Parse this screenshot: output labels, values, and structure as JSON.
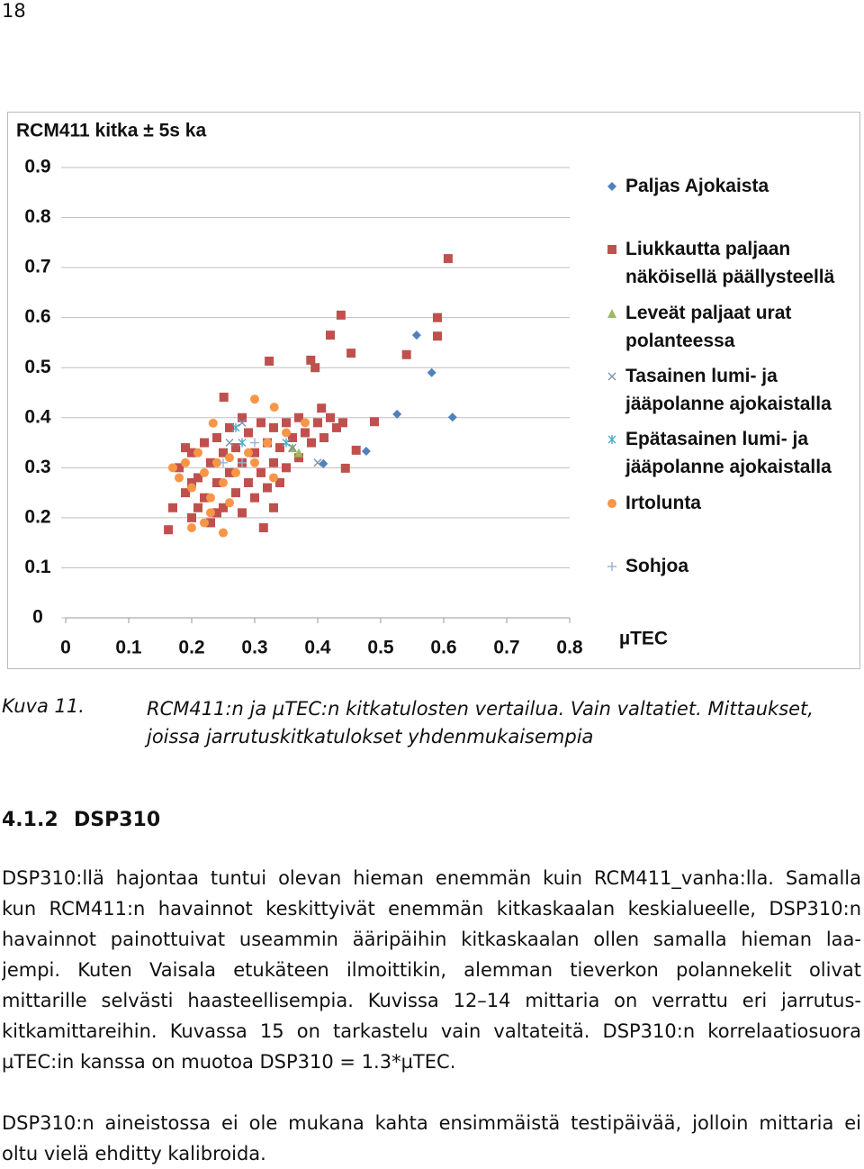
{
  "page_number": "18",
  "chart_data": {
    "type": "scatter",
    "title": "RCM411 kitka ± 5s ka",
    "x_label": "µTEC",
    "xlim": [
      0,
      0.8
    ],
    "xticks": [
      0,
      0.1,
      0.2,
      0.3,
      0.4,
      0.5,
      0.6,
      0.7,
      0.8
    ],
    "ylim": [
      0,
      0.9
    ],
    "yticks": [
      0,
      0.1,
      0.2,
      0.3,
      0.4,
      0.5,
      0.6,
      0.7,
      0.8,
      0.9
    ],
    "grid": true,
    "legend": "right",
    "series": [
      {
        "name": "Paljas Ajokaista",
        "color": "#4f81bd",
        "marker": "diamond",
        "x": [
          0.557,
          0.581,
          0.614,
          0.526,
          0.477,
          0.409
        ],
        "values": [
          0.565,
          0.49,
          0.401,
          0.407,
          0.333,
          0.308
        ]
      },
      {
        "name": "Liukkautta paljaan näköisellä päällysteellä",
        "color": "#c0504d",
        "marker": "square",
        "x": [
          0.607,
          0.59,
          0.59,
          0.437,
          0.42,
          0.323,
          0.251,
          0.541,
          0.453,
          0.389,
          0.396,
          0.406,
          0.314,
          0.163,
          0.444,
          0.49,
          0.461,
          0.17,
          0.18,
          0.19,
          0.2,
          0.2,
          0.21,
          0.22,
          0.22,
          0.23,
          0.23,
          0.24,
          0.24,
          0.25,
          0.25,
          0.26,
          0.26,
          0.27,
          0.27,
          0.28,
          0.28,
          0.29,
          0.29,
          0.3,
          0.3,
          0.31,
          0.31,
          0.32,
          0.32,
          0.33,
          0.33,
          0.34,
          0.34,
          0.35,
          0.35,
          0.36,
          0.37,
          0.37,
          0.38,
          0.39,
          0.4,
          0.41,
          0.42,
          0.43,
          0.44,
          0.19,
          0.21,
          0.24,
          0.28,
          0.33,
          0.2
        ],
        "values": [
          0.718,
          0.6,
          0.563,
          0.605,
          0.565,
          0.513,
          0.441,
          0.526,
          0.529,
          0.515,
          0.5,
          0.419,
          0.18,
          0.176,
          0.299,
          0.392,
          0.335,
          0.22,
          0.3,
          0.25,
          0.33,
          0.2,
          0.28,
          0.35,
          0.24,
          0.31,
          0.19,
          0.36,
          0.27,
          0.22,
          0.33,
          0.38,
          0.29,
          0.25,
          0.34,
          0.31,
          0.21,
          0.37,
          0.27,
          0.33,
          0.24,
          0.39,
          0.29,
          0.35,
          0.26,
          0.31,
          0.38,
          0.34,
          0.27,
          0.39,
          0.3,
          0.36,
          0.4,
          0.32,
          0.37,
          0.35,
          0.39,
          0.36,
          0.4,
          0.38,
          0.39,
          0.34,
          0.22,
          0.21,
          0.4,
          0.22,
          0.27
        ]
      },
      {
        "name": "Leveät paljaat urat polanteessa",
        "color": "#9bbb59",
        "marker": "triangle",
        "x": [
          0.37,
          0.36
        ],
        "values": [
          0.33,
          0.34
        ]
      },
      {
        "name": "Tasainen lumi- ja jääpolanne ajokaistalla",
        "color": "#7f8fa9",
        "marker": "x",
        "x": [
          0.28,
          0.36,
          0.26,
          0.4
        ],
        "values": [
          0.39,
          0.34,
          0.35,
          0.31
        ]
      },
      {
        "name": "Epätasainen lumi- ja jääpolanne ajokaistalla",
        "color": "#4bacc6",
        "marker": "star",
        "x": [
          0.28,
          0.35,
          0.27
        ],
        "values": [
          0.35,
          0.35,
          0.38
        ]
      },
      {
        "name": "Irtolunta",
        "color": "#f79646",
        "marker": "circle",
        "x": [
          0.3,
          0.331,
          0.234,
          0.25,
          0.2,
          0.17,
          0.18,
          0.19,
          0.2,
          0.21,
          0.22,
          0.23,
          0.24,
          0.25,
          0.26,
          0.27,
          0.29,
          0.3,
          0.32,
          0.33,
          0.35,
          0.38,
          0.23,
          0.26,
          0.22
        ],
        "values": [
          0.437,
          0.421,
          0.389,
          0.17,
          0.18,
          0.3,
          0.28,
          0.31,
          0.26,
          0.33,
          0.29,
          0.24,
          0.31,
          0.27,
          0.32,
          0.29,
          0.33,
          0.31,
          0.35,
          0.28,
          0.37,
          0.39,
          0.21,
          0.23,
          0.19
        ]
      },
      {
        "name": "Sohjoa",
        "color": "#95b3d7",
        "marker": "plus",
        "x": [
          0.25,
          0.28,
          0.3
        ],
        "values": [
          0.31,
          0.31,
          0.35
        ]
      }
    ]
  },
  "caption": {
    "label": "Kuva 11.",
    "lines": [
      "RCM411:n  ja µTEC:n kitkatulosten vertailua. Vain valtatiet. Mittaukset,",
      "joissa jarrutuskitkatulokset yhdenmukaisempia"
    ]
  },
  "heading": {
    "number": "4.1.2",
    "title": "DSP310"
  },
  "paragraphs": [
    [
      "DSP310:llä hajontaa tuntui olevan hieman enemmän kuin RCM411_vanha:lla. Samalla",
      "kun RCM411:n havainnot keskittyivät enemmän kitkaskaalan keskialueelle, DSP310:n",
      "havainnot painottuivat useammin ääripäihin kitkaskaalan ollen samalla hieman laa-",
      "jempi. Kuten Vaisala etukäteen ilmoittikin, alemman tieverkon polannekelit olivat",
      "mittarille selvästi haasteellisempia. Kuvissa 12–14 mittaria on verrattu eri jarrutus-",
      "kitkamittareihin. Kuvassa 15 on tarkastelu vain valtateitä. DSP310:n korrelaatiosuora",
      "µTEC:in kanssa on muotoa DSP310 = 1.3*µTEC."
    ],
    [
      "DSP310:n aineistossa ei ole mukana kahta ensimmäistä testipäivää, jolloin mittaria ei",
      "oltu vielä ehditty kalibroida."
    ]
  ]
}
